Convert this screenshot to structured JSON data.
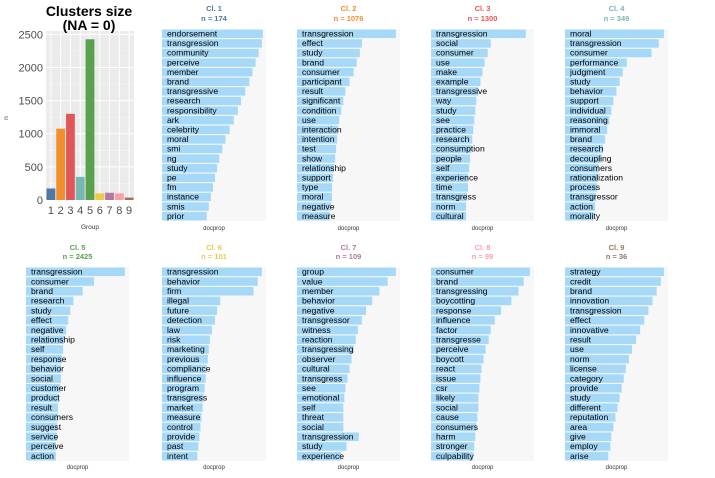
{
  "chart_data": [
    {
      "type": "bar",
      "title": "Clusters size",
      "subtitle": "(NA = 0)",
      "xlabel": "Group",
      "ylabel": "n",
      "categories": [
        "1",
        "2",
        "3",
        "4",
        "5",
        "6",
        "7",
        "8",
        "9"
      ],
      "values": [
        174,
        1076,
        1300,
        349,
        2425,
        101,
        109,
        99,
        36
      ],
      "colors": [
        "#4e79a7",
        "#f28e2b",
        "#e15759",
        "#76b7b2",
        "#59a14f",
        "#edc948",
        "#b07aa1",
        "#ff9da7",
        "#9c755f"
      ],
      "yticks": [
        0,
        500,
        1000,
        1500,
        2000,
        2500
      ],
      "ylim": [
        0,
        2550
      ],
      "grid": true
    },
    {
      "type": "bar",
      "orientation": "horizontal",
      "title": "Cl. 1",
      "subtitle": "n = 174",
      "xlabel": "docprop",
      "title_color": "#4e79a7",
      "categories": [
        "endorsement",
        "transgression",
        "community",
        "perceive",
        "member",
        "brand",
        "transgressive",
        "research",
        "responsibility",
        "ark",
        "celebrity",
        "moral",
        "smi",
        "ng",
        "study",
        "pe",
        "fm",
        "instance",
        "smis",
        "prior"
      ],
      "values": [
        0.97,
        0.96,
        0.93,
        0.9,
        0.87,
        0.84,
        0.8,
        0.76,
        0.73,
        0.69,
        0.65,
        0.61,
        0.58,
        0.55,
        0.53,
        0.51,
        0.49,
        0.47,
        0.45,
        0.43
      ]
    },
    {
      "type": "bar",
      "orientation": "horizontal",
      "title": "Cl. 2",
      "subtitle": "n = 1076",
      "xlabel": "docprop",
      "title_color": "#f28e2b",
      "categories": [
        "transgression",
        "effect",
        "study",
        "brand",
        "consumer",
        "participant",
        "result",
        "significant",
        "condition",
        "use",
        "interaction",
        "intention",
        "test",
        "show",
        "relationship",
        "support",
        "type",
        "moral",
        "negative",
        "measure"
      ],
      "values": [
        0.96,
        0.63,
        0.61,
        0.58,
        0.55,
        0.51,
        0.47,
        0.45,
        0.43,
        0.41,
        0.4,
        0.39,
        0.38,
        0.37,
        0.36,
        0.35,
        0.34,
        0.34,
        0.33,
        0.32
      ]
    },
    {
      "type": "bar",
      "orientation": "horizontal",
      "title": "Cl. 3",
      "subtitle": "n = 1300",
      "xlabel": "docprop",
      "title_color": "#e15759",
      "categories": [
        "transgression",
        "social",
        "consumer",
        "use",
        "make",
        "example",
        "transgressive",
        "way",
        "study",
        "see",
        "practice",
        "research",
        "consumption",
        "people",
        "self",
        "experience",
        "time",
        "transgress",
        "norm",
        "cultural"
      ],
      "values": [
        0.92,
        0.58,
        0.55,
        0.52,
        0.5,
        0.48,
        0.46,
        0.44,
        0.43,
        0.42,
        0.41,
        0.4,
        0.39,
        0.38,
        0.37,
        0.36,
        0.36,
        0.35,
        0.34,
        0.34
      ]
    },
    {
      "type": "bar",
      "orientation": "horizontal",
      "title": "Cl. 4",
      "subtitle": "n = 349",
      "xlabel": "docprop",
      "title_color": "#76b7b2",
      "categories": [
        "moral",
        "transgression",
        "consumer",
        "performance",
        "judgment",
        "study",
        "behavior",
        "support",
        "individual",
        "reasoning",
        "immoral",
        "brand",
        "research",
        "decoupling",
        "consumers",
        "rationalization",
        "process",
        "transgressor",
        "action",
        "morality"
      ],
      "values": [
        0.96,
        0.91,
        0.84,
        0.6,
        0.56,
        0.53,
        0.5,
        0.47,
        0.45,
        0.43,
        0.41,
        0.39,
        0.37,
        0.35,
        0.33,
        0.32,
        0.31,
        0.3,
        0.29,
        0.28
      ]
    },
    {
      "type": "bar",
      "orientation": "horizontal",
      "title": "Cl. 5",
      "subtitle": "n = 2425",
      "xlabel": "docprop",
      "title_color": "#59a14f",
      "categories": [
        "transgression",
        "consumer",
        "brand",
        "research",
        "study",
        "effect",
        "negative",
        "relationship",
        "self",
        "response",
        "behavior",
        "social",
        "customer",
        "product",
        "result",
        "consumers",
        "suggest",
        "service",
        "perceive",
        "action"
      ],
      "values": [
        0.96,
        0.66,
        0.55,
        0.46,
        0.43,
        0.41,
        0.39,
        0.37,
        0.36,
        0.35,
        0.34,
        0.34,
        0.33,
        0.32,
        0.31,
        0.31,
        0.3,
        0.3,
        0.29,
        0.29
      ]
    },
    {
      "type": "bar",
      "orientation": "horizontal",
      "title": "Cl. 6",
      "subtitle": "n = 101",
      "xlabel": "docprop",
      "title_color": "#edc948",
      "categories": [
        "transgression",
        "behavior",
        "firm",
        "illegal",
        "future",
        "detection",
        "law",
        "risk",
        "marketing",
        "previous",
        "compliance",
        "influence",
        "program",
        "transgress",
        "market",
        "measure",
        "control",
        "provide",
        "past",
        "intent"
      ],
      "values": [
        0.96,
        0.92,
        0.88,
        0.56,
        0.53,
        0.51,
        0.48,
        0.46,
        0.45,
        0.44,
        0.43,
        0.42,
        0.41,
        0.4,
        0.39,
        0.38,
        0.37,
        0.36,
        0.35,
        0.34
      ]
    },
    {
      "type": "bar",
      "orientation": "horizontal",
      "title": "Cl. 7",
      "subtitle": "n = 109",
      "xlabel": "docprop",
      "title_color": "#b07aa1",
      "categories": [
        "group",
        "value",
        "member",
        "behavior",
        "negative",
        "transgressor",
        "witness",
        "reaction",
        "transgressing",
        "observer",
        "cultural",
        "transgress",
        "see",
        "emotional",
        "self",
        "threat",
        "social",
        "transgression",
        "study",
        "experience"
      ],
      "values": [
        0.96,
        0.88,
        0.8,
        0.73,
        0.67,
        0.63,
        0.59,
        0.57,
        0.55,
        0.53,
        0.51,
        0.49,
        0.47,
        0.46,
        0.45,
        0.45,
        0.45,
        0.6,
        0.48,
        0.43
      ]
    },
    {
      "type": "bar",
      "orientation": "horizontal",
      "title": "Cl. 8",
      "subtitle": "n = 99",
      "xlabel": "docprop",
      "title_color": "#ff9da7",
      "categories": [
        "consumer",
        "brand",
        "transgressing",
        "boycotting",
        "response",
        "influence",
        "factor",
        "transgresse",
        "perceive",
        "boycott",
        "react",
        "issue",
        "csr",
        "likely",
        "social",
        "cause",
        "consumers",
        "harm",
        "stronger",
        "culpability"
      ],
      "values": [
        0.96,
        0.9,
        0.85,
        0.78,
        0.68,
        0.62,
        0.58,
        0.56,
        0.53,
        0.51,
        0.49,
        0.48,
        0.47,
        0.46,
        0.46,
        0.45,
        0.44,
        0.43,
        0.42,
        0.41
      ]
    },
    {
      "type": "bar",
      "orientation": "horizontal",
      "title": "Cl. 9",
      "subtitle": "n = 36",
      "xlabel": "docprop",
      "title_color": "#9c755f",
      "categories": [
        "strategy",
        "credit",
        "brand",
        "innovation",
        "transgression",
        "effect",
        "innovative",
        "result",
        "use",
        "norm",
        "license",
        "category",
        "provide",
        "study",
        "different",
        "reputation",
        "area",
        "give",
        "employ",
        "arise"
      ],
      "values": [
        0.96,
        0.93,
        0.89,
        0.85,
        0.81,
        0.77,
        0.73,
        0.69,
        0.65,
        0.62,
        0.59,
        0.57,
        0.55,
        0.53,
        0.51,
        0.49,
        0.47,
        0.45,
        0.44,
        0.42
      ]
    }
  ]
}
